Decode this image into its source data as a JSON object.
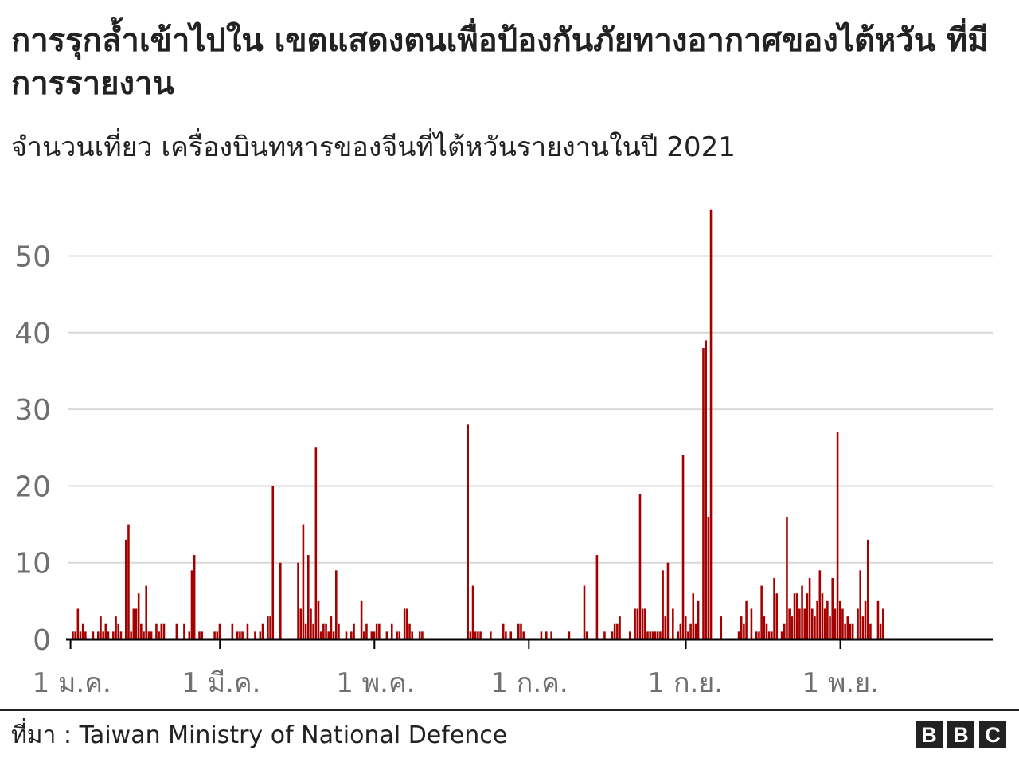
{
  "header": {
    "title": "การรุกล้ำเข้าไปใน เขตแสดงตนเพื่อป้องกันภัยทางอากาศของไต้หวัน ที่มีการรายงาน",
    "subtitle": "จำนวนเที่ยว เครื่องบินทหารของจีนที่ไต้หวันรายงานในปี 2021"
  },
  "footer": {
    "source": "ที่มา : Taiwan Ministry of National Defence",
    "logo_letters": [
      "B",
      "B",
      "C"
    ]
  },
  "colors": {
    "bar": "#a50000",
    "grid": "#d9d9d9",
    "axis": "#000000",
    "tick_text": "#6f6f6f"
  },
  "chart_data": {
    "type": "bar",
    "title": "การรุกล้ำเข้าไปใน เขตแสดงตนเพื่อป้องกันภัยทางอากาศของไต้หวัน ที่มีการรายงาน",
    "subtitle": "จำนวนเที่ยว เครื่องบินทหารของจีนที่ไต้หวันรายงานในปี 2021",
    "xlabel": "",
    "ylabel": "",
    "ylim": [
      0,
      56
    ],
    "yticks": [
      0,
      10,
      20,
      30,
      40,
      50
    ],
    "grid": true,
    "x_tick_labels": [
      {
        "label": "1 ม.ค.",
        "day": 1
      },
      {
        "label": "1 มี.ค.",
        "day": 60
      },
      {
        "label": "1 พ.ค.",
        "day": 121
      },
      {
        "label": "1 ก.ค.",
        "day": 182
      },
      {
        "label": "1 ก.ย.",
        "day": 244
      },
      {
        "label": "1 พ.ย.",
        "day": 305
      }
    ],
    "x_domain_days": [
      1,
      365
    ],
    "series": [
      {
        "points": [
          [
            2,
            1
          ],
          [
            3,
            1
          ],
          [
            4,
            4
          ],
          [
            5,
            1
          ],
          [
            6,
            2
          ],
          [
            7,
            1
          ],
          [
            10,
            1
          ],
          [
            12,
            1
          ],
          [
            13,
            3
          ],
          [
            14,
            1
          ],
          [
            15,
            2
          ],
          [
            16,
            1
          ],
          [
            18,
            1
          ],
          [
            19,
            3
          ],
          [
            20,
            2
          ],
          [
            21,
            1
          ],
          [
            23,
            13
          ],
          [
            24,
            15
          ],
          [
            25,
            1
          ],
          [
            26,
            4
          ],
          [
            27,
            4
          ],
          [
            28,
            6
          ],
          [
            29,
            2
          ],
          [
            30,
            1
          ],
          [
            31,
            7
          ],
          [
            32,
            1
          ],
          [
            33,
            1
          ],
          [
            35,
            2
          ],
          [
            36,
            1
          ],
          [
            37,
            2
          ],
          [
            38,
            2
          ],
          [
            43,
            2
          ],
          [
            46,
            2
          ],
          [
            48,
            1
          ],
          [
            49,
            9
          ],
          [
            50,
            11
          ],
          [
            52,
            1
          ],
          [
            53,
            1
          ],
          [
            58,
            1
          ],
          [
            59,
            1
          ],
          [
            60,
            2
          ],
          [
            65,
            2
          ],
          [
            67,
            1
          ],
          [
            68,
            1
          ],
          [
            69,
            1
          ],
          [
            71,
            2
          ],
          [
            74,
            1
          ],
          [
            76,
            1
          ],
          [
            77,
            2
          ],
          [
            79,
            3
          ],
          [
            80,
            3
          ],
          [
            81,
            20
          ],
          [
            84,
            10
          ],
          [
            91,
            10
          ],
          [
            92,
            4
          ],
          [
            93,
            15
          ],
          [
            94,
            2
          ],
          [
            95,
            11
          ],
          [
            96,
            4
          ],
          [
            97,
            2
          ],
          [
            98,
            25
          ],
          [
            99,
            5
          ],
          [
            100,
            1
          ],
          [
            101,
            2
          ],
          [
            102,
            2
          ],
          [
            103,
            1
          ],
          [
            104,
            3
          ],
          [
            105,
            1
          ],
          [
            106,
            9
          ],
          [
            107,
            2
          ],
          [
            110,
            1
          ],
          [
            112,
            1
          ],
          [
            113,
            2
          ],
          [
            116,
            5
          ],
          [
            117,
            1
          ],
          [
            118,
            2
          ],
          [
            120,
            1
          ],
          [
            121,
            1
          ],
          [
            122,
            2
          ],
          [
            123,
            2
          ],
          [
            126,
            1
          ],
          [
            128,
            2
          ],
          [
            130,
            1
          ],
          [
            131,
            1
          ],
          [
            133,
            4
          ],
          [
            134,
            4
          ],
          [
            135,
            2
          ],
          [
            136,
            1
          ],
          [
            139,
            1
          ],
          [
            140,
            1
          ],
          [
            158,
            28
          ],
          [
            159,
            1
          ],
          [
            160,
            7
          ],
          [
            161,
            1
          ],
          [
            162,
            1
          ],
          [
            163,
            1
          ],
          [
            167,
            1
          ],
          [
            172,
            2
          ],
          [
            173,
            1
          ],
          [
            175,
            1
          ],
          [
            178,
            2
          ],
          [
            179,
            2
          ],
          [
            180,
            1
          ],
          [
            187,
            1
          ],
          [
            189,
            1
          ],
          [
            191,
            1
          ],
          [
            198,
            1
          ],
          [
            204,
            7
          ],
          [
            205,
            1
          ],
          [
            209,
            11
          ],
          [
            212,
            1
          ],
          [
            215,
            1
          ],
          [
            216,
            2
          ],
          [
            217,
            2
          ],
          [
            218,
            3
          ],
          [
            222,
            1
          ],
          [
            224,
            4
          ],
          [
            225,
            4
          ],
          [
            226,
            19
          ],
          [
            227,
            4
          ],
          [
            228,
            4
          ],
          [
            229,
            1
          ],
          [
            230,
            1
          ],
          [
            231,
            1
          ],
          [
            232,
            1
          ],
          [
            233,
            1
          ],
          [
            234,
            1
          ],
          [
            235,
            9
          ],
          [
            236,
            3
          ],
          [
            237,
            10
          ],
          [
            239,
            4
          ],
          [
            241,
            1
          ],
          [
            242,
            2
          ],
          [
            243,
            24
          ],
          [
            244,
            3
          ],
          [
            245,
            1
          ],
          [
            246,
            2
          ],
          [
            247,
            6
          ],
          [
            248,
            2
          ],
          [
            249,
            5
          ],
          [
            251,
            38
          ],
          [
            252,
            39
          ],
          [
            253,
            16
          ],
          [
            254,
            56
          ],
          [
            258,
            3
          ],
          [
            265,
            1
          ],
          [
            266,
            3
          ],
          [
            267,
            2
          ],
          [
            268,
            5
          ],
          [
            270,
            4
          ],
          [
            272,
            1
          ],
          [
            273,
            1
          ],
          [
            274,
            7
          ],
          [
            275,
            3
          ],
          [
            276,
            2
          ],
          [
            277,
            1
          ],
          [
            278,
            1
          ],
          [
            279,
            8
          ],
          [
            280,
            6
          ],
          [
            282,
            1
          ],
          [
            283,
            2
          ],
          [
            284,
            16
          ],
          [
            285,
            4
          ],
          [
            286,
            3
          ],
          [
            287,
            6
          ],
          [
            288,
            6
          ],
          [
            289,
            4
          ],
          [
            290,
            7
          ],
          [
            291,
            4
          ],
          [
            292,
            6
          ],
          [
            293,
            8
          ],
          [
            294,
            4
          ],
          [
            295,
            3
          ],
          [
            296,
            5
          ],
          [
            297,
            9
          ],
          [
            298,
            6
          ],
          [
            299,
            4
          ],
          [
            300,
            5
          ],
          [
            301,
            3
          ],
          [
            302,
            8
          ],
          [
            303,
            4
          ],
          [
            304,
            27
          ],
          [
            305,
            5
          ],
          [
            306,
            4
          ],
          [
            307,
            2
          ],
          [
            308,
            3
          ],
          [
            309,
            2
          ],
          [
            310,
            2
          ],
          [
            312,
            4
          ],
          [
            313,
            9
          ],
          [
            314,
            3
          ],
          [
            315,
            5
          ],
          [
            316,
            13
          ],
          [
            317,
            2
          ],
          [
            320,
            5
          ],
          [
            321,
            2
          ],
          [
            322,
            4
          ]
        ]
      }
    ]
  }
}
